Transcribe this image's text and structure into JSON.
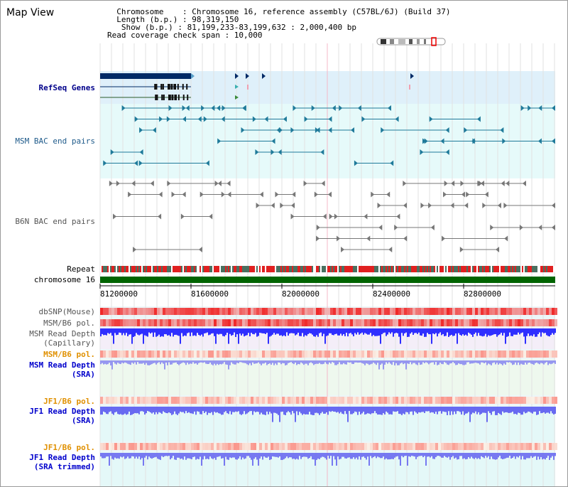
{
  "header": {
    "title": "Map View",
    "info_lines": [
      "  Chromosome    : Chromosome 16, reference assembly (C57BL/6J) (Build 37)",
      "  Length (b.p.) : 98,319,150",
      "   Show (b.p.) : 81,199,233-83,199,632 : 2,000,400 bp",
      "Read coverage check span : 10,000"
    ]
  },
  "tracks": {
    "refseq": "RefSeq Genes",
    "msm_bac": "MSM BAC end pairs",
    "b6n_bac": "B6N BAC end pairs",
    "repeat": "Repeat",
    "chromosome": "chromosome 16",
    "dbsnp": "dbSNP(Mouse)",
    "msm_b6_pol_1": "MSM/B6 pol.",
    "msm_depth_cap_1": "MSM Read Depth",
    "msm_depth_cap_2": "(Capillary)",
    "msm_b6_pol_2": "MSM/B6 pol.",
    "msm_depth_sra_1": "MSM Read Depth",
    "msm_depth_sra_2": "(SRA)",
    "jf1_b6_pol_1": "JF1/B6 pol.",
    "jf1_depth_sra_1": "JF1 Read Depth",
    "jf1_depth_sra_2": "(SRA)",
    "jf1_b6_pol_2": "JF1/B6 pol.",
    "jf1_depth_trim_1": "JF1 Read Depth",
    "jf1_depth_trim_2": "(SRA trimmed)"
  },
  "axis": {
    "ticks": [
      "81200000",
      "81600000",
      "82000000",
      "82400000",
      "82800000"
    ]
  },
  "colors": {
    "gene_dark": "#002a66",
    "bac_teal": "#1f7a9a",
    "b6n_gray": "#777777",
    "chromosome_green": "#006400",
    "snp_red": "#e83030",
    "depth_blue": "#1a1aff"
  }
}
